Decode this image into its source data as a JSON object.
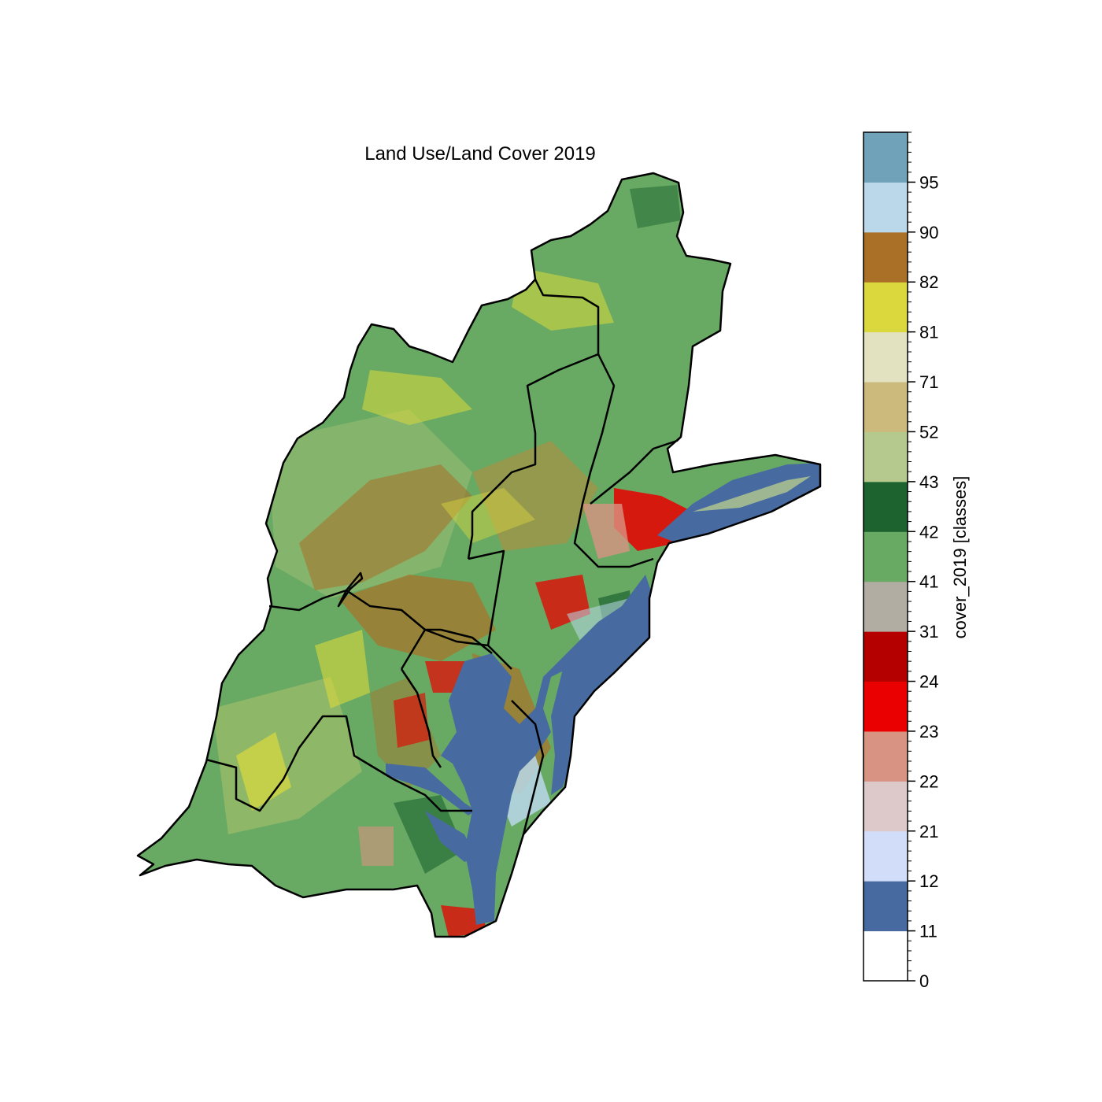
{
  "figure": {
    "title": "Land Use/Land Cover 2019"
  },
  "colorbar": {
    "label": "cover_2019 [classes]",
    "tick_labels": [
      "0",
      "11",
      "12",
      "21",
      "22",
      "23",
      "24",
      "31",
      "41",
      "42",
      "43",
      "52",
      "71",
      "81",
      "82",
      "90",
      "95"
    ],
    "classes": [
      {
        "color": "#ffffff"
      },
      {
        "color": "#476ba0"
      },
      {
        "color": "#d1ddf9"
      },
      {
        "color": "#ddc9c9"
      },
      {
        "color": "#d89382"
      },
      {
        "color": "#ea0000"
      },
      {
        "color": "#b50000"
      },
      {
        "color": "#b2ada3"
      },
      {
        "color": "#68aa63"
      },
      {
        "color": "#1c6330"
      },
      {
        "color": "#b5c98e"
      },
      {
        "color": "#ccba7c"
      },
      {
        "color": "#e2e2c1"
      },
      {
        "color": "#dbd83d"
      },
      {
        "color": "#aa7028"
      },
      {
        "color": "#bad8ea"
      },
      {
        "color": "#70a3ba"
      }
    ]
  },
  "map": {
    "colors": {
      "forest": "#68aa63",
      "forest_dark": "#1c6330",
      "shrub": "#b5c98e",
      "pasture": "#dbd83d",
      "crops": "#aa7028",
      "developed_high": "#ea0000",
      "developed_mid": "#d89382",
      "developed_low": "#ddc9c9",
      "water": "#476ba0",
      "wetland": "#bad8ea",
      "grassland": "#ccba7c",
      "boundary": "#000000"
    }
  }
}
